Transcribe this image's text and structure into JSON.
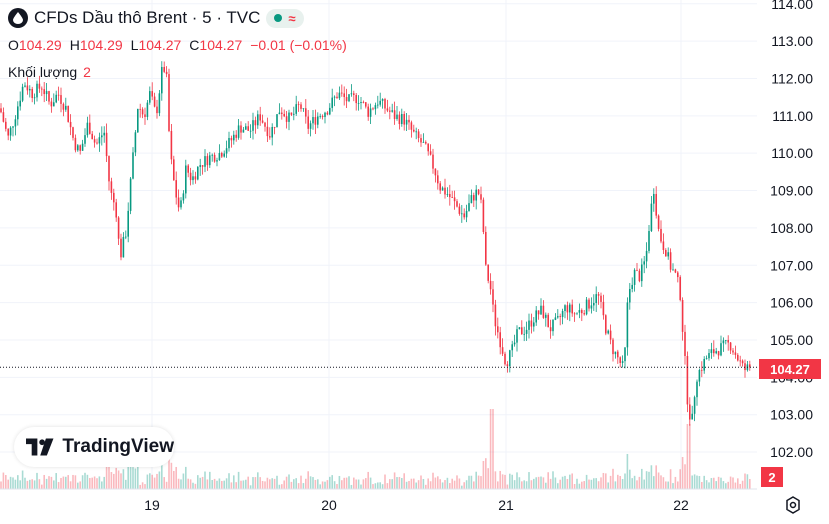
{
  "header": {
    "title": "CFDs Dầu thô Brent · 5 · TVC",
    "status_icons": [
      "market-open-dot",
      "approx-icon"
    ],
    "approx_glyph": "≈"
  },
  "ohlc": {
    "o_label": "O",
    "o": "104.29",
    "h_label": "H",
    "h": "104.29",
    "l_label": "L",
    "l": "104.27",
    "c_label": "C",
    "c": "104.27",
    "change": "−0.01 (−0.01%)"
  },
  "volume": {
    "label": "Khối lượng",
    "value": "2"
  },
  "logo": {
    "text": "TradingView"
  },
  "price_tag": "104.27",
  "volume_tag": "2",
  "colors": {
    "up": "#089981",
    "down": "#f23645",
    "text": "#131722",
    "grid": "#f0f3fa"
  },
  "chart_data": {
    "type": "candlestick",
    "ylim": [
      101.6,
      114.1
    ],
    "yticks": [
      "102.00",
      "103.00",
      "104.00",
      "105.00",
      "106.00",
      "107.00",
      "108.00",
      "109.00",
      "110.00",
      "111.00",
      "112.00",
      "113.00",
      "114.00"
    ],
    "xticks": [
      "19",
      "20",
      "21",
      "22"
    ],
    "last_price": 104.27,
    "grid": true,
    "path": [
      [
        0,
        111.2
      ],
      [
        8,
        110.4
      ],
      [
        15,
        111.0
      ],
      [
        24,
        111.9
      ],
      [
        32,
        111.6
      ],
      [
        42,
        111.8
      ],
      [
        50,
        111.3
      ],
      [
        58,
        111.6
      ],
      [
        66,
        111.2
      ],
      [
        74,
        110.3
      ],
      [
        80,
        110.0
      ],
      [
        88,
        110.8
      ],
      [
        96,
        110.2
      ],
      [
        104,
        110.6
      ],
      [
        110,
        109.0
      ],
      [
        116,
        108.5
      ],
      [
        120,
        107.2
      ],
      [
        126,
        107.9
      ],
      [
        132,
        109.6
      ],
      [
        138,
        111.3
      ],
      [
        144,
        111.0
      ],
      [
        150,
        111.6
      ],
      [
        156,
        111.0
      ],
      [
        162,
        112.2
      ],
      [
        166,
        112.3
      ],
      [
        170,
        110.0
      ],
      [
        175,
        109.0
      ],
      [
        180,
        108.4
      ],
      [
        186,
        109.6
      ],
      [
        192,
        109.3
      ],
      [
        200,
        109.7
      ],
      [
        210,
        109.9
      ],
      [
        220,
        110.0
      ],
      [
        230,
        110.3
      ],
      [
        240,
        110.7
      ],
      [
        250,
        110.6
      ],
      [
        260,
        111.0
      ],
      [
        270,
        110.5
      ],
      [
        280,
        111.2
      ],
      [
        290,
        110.9
      ],
      [
        300,
        111.3
      ],
      [
        308,
        110.7
      ],
      [
        318,
        111.0
      ],
      [
        328,
        111.2
      ],
      [
        338,
        111.6
      ],
      [
        348,
        111.4
      ],
      [
        358,
        111.5
      ],
      [
        368,
        111.1
      ],
      [
        378,
        111.4
      ],
      [
        386,
        111.2
      ],
      [
        394,
        111.0
      ],
      [
        404,
        110.9
      ],
      [
        414,
        110.5
      ],
      [
        424,
        110.2
      ],
      [
        434,
        109.6
      ],
      [
        440,
        109.1
      ],
      [
        448,
        108.9
      ],
      [
        456,
        108.6
      ],
      [
        464,
        108.3
      ],
      [
        472,
        108.8
      ],
      [
        478,
        109.0
      ],
      [
        482,
        108.5
      ],
      [
        486,
        106.8
      ],
      [
        490,
        106.5
      ],
      [
        494,
        105.6
      ],
      [
        500,
        105.0
      ],
      [
        506,
        104.4
      ],
      [
        512,
        104.7
      ],
      [
        518,
        105.2
      ],
      [
        526,
        105.3
      ],
      [
        534,
        105.6
      ],
      [
        542,
        105.8
      ],
      [
        550,
        105.3
      ],
      [
        558,
        105.5
      ],
      [
        566,
        105.9
      ],
      [
        574,
        105.7
      ],
      [
        582,
        105.8
      ],
      [
        590,
        106.0
      ],
      [
        598,
        106.2
      ],
      [
        606,
        105.3
      ],
      [
        612,
        104.8
      ],
      [
        618,
        104.5
      ],
      [
        624,
        104.2
      ],
      [
        628,
        106.2
      ],
      [
        634,
        106.8
      ],
      [
        640,
        106.7
      ],
      [
        646,
        107.2
      ],
      [
        650,
        108.3
      ],
      [
        654,
        109.1
      ],
      [
        658,
        108.0
      ],
      [
        662,
        107.6
      ],
      [
        666,
        107.4
      ],
      [
        670,
        107.0
      ],
      [
        676,
        106.7
      ],
      [
        680,
        106.3
      ],
      [
        684,
        104.8
      ],
      [
        688,
        103.2
      ],
      [
        692,
        102.8
      ],
      [
        696,
        104.0
      ],
      [
        700,
        104.2
      ],
      [
        706,
        104.5
      ],
      [
        714,
        104.7
      ],
      [
        722,
        104.8
      ],
      [
        730,
        104.9
      ],
      [
        738,
        104.5
      ],
      [
        744,
        104.2
      ],
      [
        750,
        104.27
      ]
    ]
  }
}
